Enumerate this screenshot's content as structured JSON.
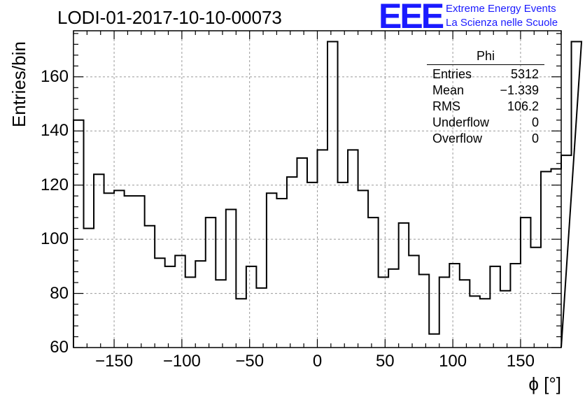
{
  "title": "LODI-01-2017-10-10-00073",
  "logo": {
    "mark": "EEE",
    "line1": "Extreme Energy Events",
    "line2": "La Scienza nelle Scuole",
    "color": "#1a1aff"
  },
  "stats": {
    "name": "Phi",
    "rows": [
      {
        "label": "Entries",
        "value": "5312"
      },
      {
        "label": "Mean",
        "value": "−1.339"
      },
      {
        "label": "RMS",
        "value": "106.2"
      },
      {
        "label": "Underflow",
        "value": "0"
      },
      {
        "label": "Overflow",
        "value": "0"
      }
    ]
  },
  "chart_data": {
    "type": "bar",
    "style": "step-histogram",
    "title": "LODI-01-2017-10-10-00073",
    "xlabel": "ϕ [°]",
    "ylabel": "Entries/bin",
    "xlim": [
      -180,
      180
    ],
    "ylim": [
      60,
      177
    ],
    "grid": true,
    "x_tick_labels": [
      "−150",
      "−100",
      "−50",
      "0",
      "50",
      "100",
      "150"
    ],
    "x_ticks": [
      -150,
      -100,
      -50,
      0,
      50,
      100,
      150
    ],
    "y_tick_labels": [
      "60",
      "80",
      "100",
      "120",
      "140",
      "160"
    ],
    "y_ticks": [
      60,
      80,
      100,
      120,
      140,
      160
    ],
    "bin_width": 7.5,
    "values": [
      144,
      104,
      124,
      117,
      118,
      116,
      116,
      105,
      93,
      90,
      94,
      86,
      92,
      108,
      85,
      111,
      78,
      90,
      82,
      117,
      115,
      123,
      130,
      121,
      133,
      173,
      121,
      133,
      118,
      108,
      86,
      89,
      106,
      94,
      87,
      65,
      86,
      91,
      85,
      79,
      78,
      90,
      81,
      91,
      108,
      97,
      125,
      126,
      131,
      173
    ]
  }
}
